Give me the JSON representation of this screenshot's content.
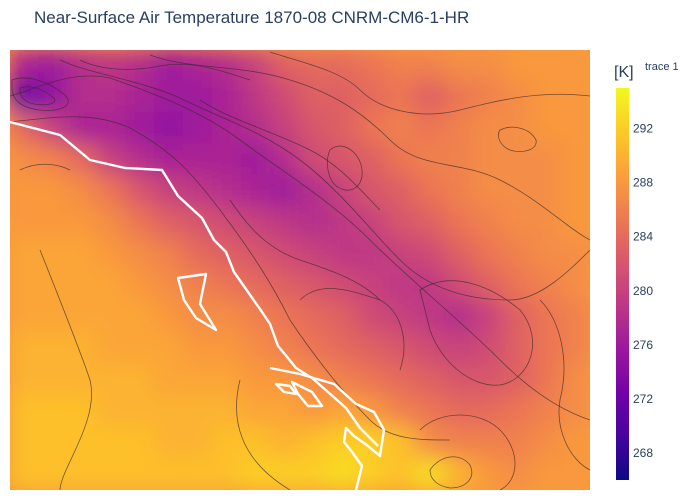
{
  "chart_data": {
    "type": "heatmap",
    "subtype": "filled-contour map with coastline overlay",
    "title": "Near-Surface Air Temperature 1870-08 CNRM-CM6-1-HR",
    "trace_name": "trace 1",
    "colorbar": {
      "title": "[K]",
      "range": [
        266,
        295
      ],
      "ticks": [
        268,
        272,
        276,
        280,
        284,
        288,
        292
      ],
      "tick_labels": [
        "268",
        "272",
        "276",
        "280",
        "284",
        "288",
        "292"
      ]
    },
    "colorscale": [
      "#0d0887",
      "#46039f",
      "#7201a8",
      "#9c179e",
      "#bd3786",
      "#d8576b",
      "#ed7953",
      "#fb9f3a",
      "#fdca26",
      "#f0f921"
    ],
    "values": [
      [
        277,
        276,
        278,
        279,
        278,
        276,
        277,
        278,
        280,
        283,
        284,
        284,
        285,
        286,
        286,
        287,
        287,
        288,
        288,
        288
      ],
      [
        272,
        275,
        278,
        278,
        277,
        276,
        276,
        277,
        279,
        281,
        283,
        283,
        284,
        285,
        283,
        285,
        286,
        287,
        288,
        288
      ],
      [
        284,
        280,
        277,
        277,
        276,
        275,
        276,
        277,
        278,
        280,
        282,
        283,
        285,
        286,
        285,
        286,
        287,
        287,
        288,
        288
      ],
      [
        287,
        286,
        284,
        280,
        278,
        277,
        277,
        277,
        276,
        278,
        281,
        282,
        283,
        285,
        286,
        286,
        287,
        287,
        287,
        288
      ],
      [
        288,
        288,
        287,
        285,
        282,
        280,
        279,
        278,
        277,
        276,
        278,
        280,
        282,
        283,
        285,
        286,
        287,
        287,
        287,
        288
      ],
      [
        288,
        288,
        288,
        287,
        285,
        283,
        282,
        281,
        280,
        279,
        278,
        279,
        280,
        282,
        283,
        285,
        286,
        287,
        287,
        288
      ],
      [
        289,
        289,
        289,
        288,
        287,
        286,
        284,
        283,
        282,
        281,
        280,
        279,
        279,
        280,
        281,
        283,
        285,
        286,
        287,
        287
      ],
      [
        289,
        289,
        289,
        289,
        288,
        287,
        286,
        285,
        284,
        283,
        282,
        281,
        280,
        279,
        279,
        281,
        283,
        285,
        286,
        287
      ],
      [
        289,
        289,
        289,
        289,
        289,
        288,
        287,
        287,
        286,
        285,
        284,
        283,
        281,
        280,
        279,
        278,
        280,
        283,
        285,
        286
      ],
      [
        290,
        290,
        290,
        289,
        289,
        289,
        288,
        288,
        287,
        286,
        285,
        284,
        283,
        282,
        281,
        280,
        281,
        283,
        285,
        286
      ],
      [
        290,
        290,
        290,
        290,
        290,
        289,
        289,
        289,
        288,
        288,
        287,
        286,
        285,
        284,
        283,
        282,
        282,
        283,
        285,
        287
      ],
      [
        291,
        291,
        291,
        290,
        290,
        290,
        290,
        290,
        289,
        289,
        288,
        289,
        288,
        286,
        285,
        284,
        284,
        285,
        286,
        287
      ],
      [
        291,
        291,
        291,
        291,
        291,
        290,
        290,
        291,
        291,
        290,
        291,
        292,
        292,
        291,
        287,
        286,
        286,
        286,
        287,
        288
      ],
      [
        291,
        291,
        291,
        291,
        291,
        291,
        291,
        291,
        292,
        292,
        292,
        293,
        292,
        291,
        293,
        290,
        288,
        287,
        288,
        288
      ]
    ],
    "grid": false,
    "legend": "colorbar-right"
  }
}
